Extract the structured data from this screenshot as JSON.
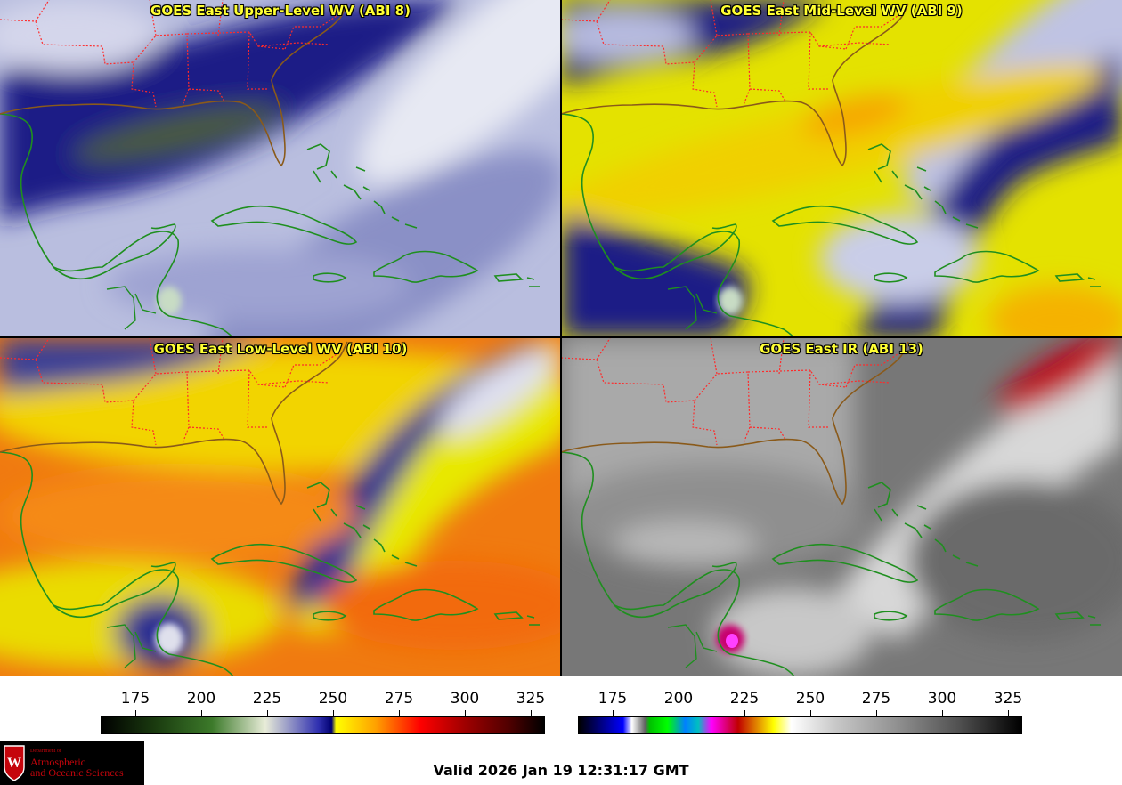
{
  "panels": [
    {
      "id": "abi8",
      "title": "GOES East Upper-Level WV (ABI 8)"
    },
    {
      "id": "abi9",
      "title": "GOES East Mid-Level WV (ABI 9)"
    },
    {
      "id": "abi10",
      "title": "GOES East Low-Level WV (ABI 10)"
    },
    {
      "id": "abi13",
      "title": "GOES East IR (ABI 13)"
    }
  ],
  "colorbars": {
    "wv": {
      "ticks": [
        "175",
        "200",
        "225",
        "250",
        "275",
        "300",
        "325"
      ]
    },
    "ir": {
      "ticks": [
        "175",
        "200",
        "225",
        "250",
        "275",
        "300",
        "325"
      ]
    }
  },
  "valid_time": "Valid 2026 Jan 19 12:31:17 GMT",
  "logo": {
    "dept": "Department of",
    "line1": "Atmospheric",
    "line2": "and Oceanic Sciences",
    "shield_letter": "W"
  },
  "colors": {
    "coastline": "#1f8f1f",
    "state_borders": "#ff2a2a",
    "title_text": "#ffff33",
    "logo_red": "#c5050c"
  }
}
